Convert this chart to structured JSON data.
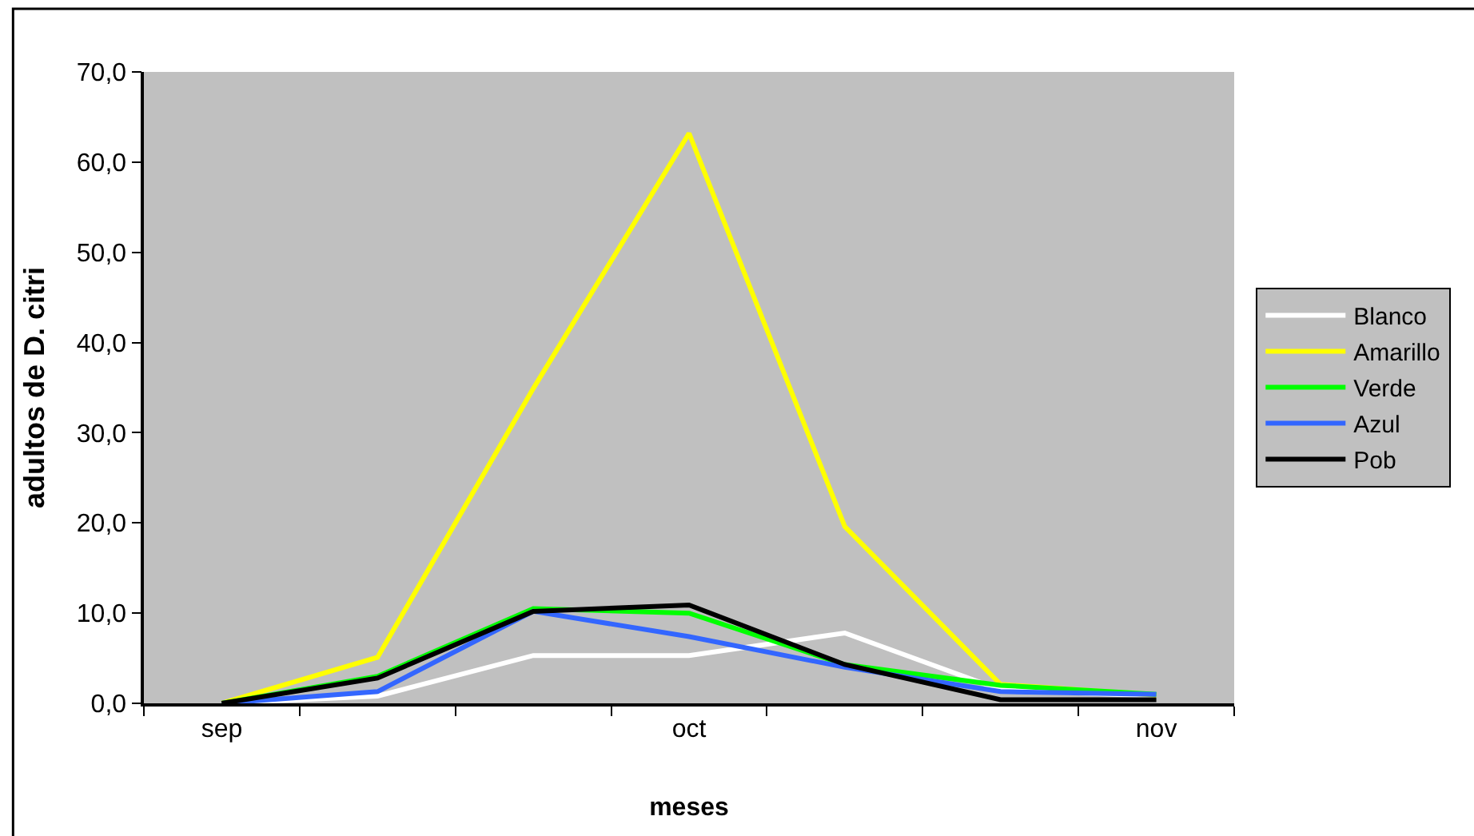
{
  "chart_data": {
    "type": "line",
    "xlabel": "meses",
    "ylabel": "adultos de D. citri",
    "categories": [
      "sep",
      null,
      null,
      "oct",
      null,
      null,
      "nov"
    ],
    "series": [
      {
        "name": "Blanco",
        "color": "#ffffff",
        "values": [
          0,
          0.8,
          5.3,
          5.3,
          7.8,
          1.5,
          0.8
        ]
      },
      {
        "name": "Amarillo",
        "color": "#ffff00",
        "values": [
          0,
          5.1,
          34.9,
          63.2,
          19.6,
          2.1,
          0.9
        ]
      },
      {
        "name": "Verde",
        "color": "#00ff00",
        "values": [
          0,
          3.0,
          10.5,
          10.0,
          4.3,
          2.0,
          1.0
        ]
      },
      {
        "name": "Azul",
        "color": "#3366ff",
        "values": [
          0,
          1.3,
          10.2,
          7.4,
          4.0,
          1.3,
          1.0
        ]
      },
      {
        "name": "Pob",
        "color": "#000000",
        "values": [
          0,
          2.8,
          10.2,
          10.9,
          4.3,
          0.4,
          0.4
        ]
      }
    ],
    "ylim": [
      0,
      70
    ],
    "yticks": [
      {
        "value": 0,
        "label": "0,0"
      },
      {
        "value": 10,
        "label": "10,0"
      },
      {
        "value": 20,
        "label": "20,0"
      },
      {
        "value": 30,
        "label": "30,0"
      },
      {
        "value": 40,
        "label": "40,0"
      },
      {
        "value": 50,
        "label": "50,0"
      },
      {
        "value": 60,
        "label": "60,0"
      },
      {
        "value": 70,
        "label": "70,0"
      }
    ],
    "grid": false,
    "legend": "right",
    "marker": "none",
    "line_style": "solid"
  }
}
